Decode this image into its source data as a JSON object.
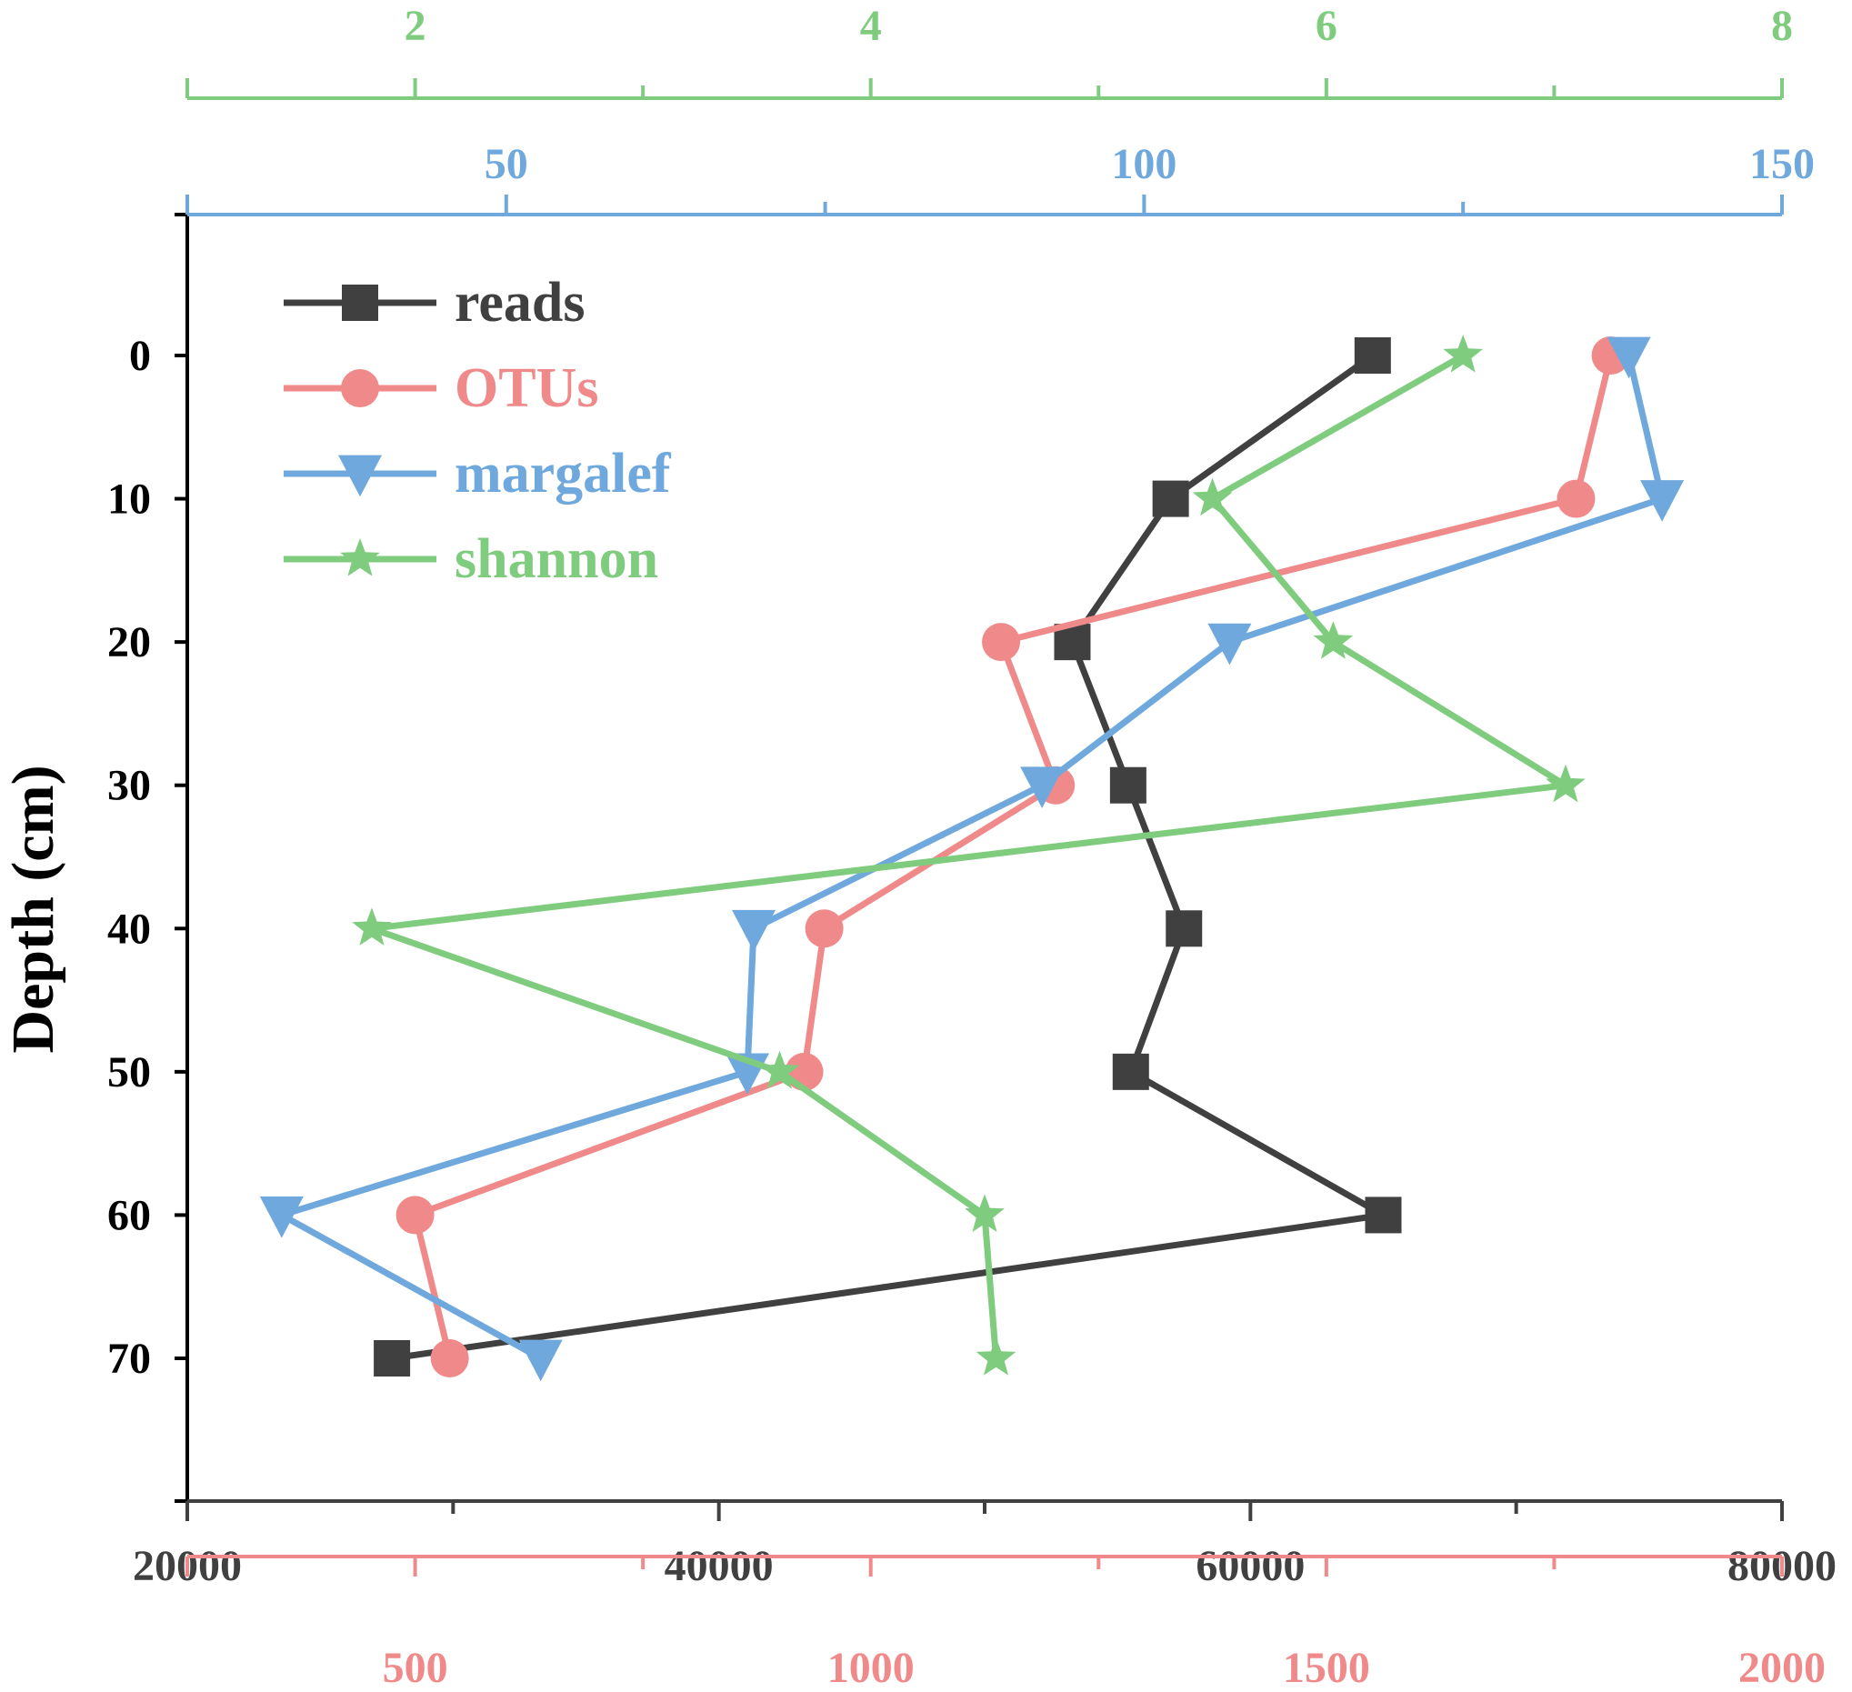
{
  "chart_data": {
    "type": "line",
    "ylabel": "Depth (cm)",
    "y_axis": {
      "range": [
        -10,
        80
      ],
      "inverted": true,
      "ticks": [
        0,
        10,
        20,
        30,
        40,
        50,
        60,
        70
      ],
      "tick_labels": [
        "0",
        "10",
        "20",
        "30",
        "40",
        "50",
        "60",
        "70"
      ]
    },
    "x_axes": [
      {
        "id": "reads",
        "side": "bottom",
        "color": "#404040",
        "range": [
          20000,
          80000
        ],
        "ticks": [
          20000,
          40000,
          60000,
          80000
        ],
        "tick_labels": [
          "20000",
          "40000",
          "60000",
          "80000"
        ],
        "minor_ticks": [
          30000,
          50000,
          70000
        ]
      },
      {
        "id": "otus",
        "side": "bottom-2",
        "color": "#f08a8a",
        "range": [
          250,
          2000
        ],
        "ticks": [
          500,
          1000,
          1500,
          2000
        ],
        "tick_labels": [
          "500",
          "1000",
          "1500",
          "2000"
        ],
        "minor_ticks": [
          750,
          1250,
          1750
        ]
      },
      {
        "id": "margalef",
        "side": "top",
        "color": "#6fa8dc",
        "range": [
          25,
          150
        ],
        "ticks": [
          50,
          100,
          150
        ],
        "tick_labels": [
          "50",
          "100",
          "150"
        ],
        "minor_ticks": [
          75,
          125
        ]
      },
      {
        "id": "shannon",
        "side": "top-2",
        "color": "#7fcc7f",
        "range": [
          1,
          8
        ],
        "ticks": [
          2,
          4,
          6,
          8
        ],
        "tick_labels": [
          "2",
          "4",
          "6",
          "8"
        ],
        "minor_ticks": [
          3,
          5,
          7
        ]
      }
    ],
    "depth": [
      0,
      10,
      20,
      30,
      40,
      50,
      60,
      70
    ],
    "series": [
      {
        "name": "reads",
        "axis": "reads",
        "color": "#404040",
        "marker": "square",
        "values": [
          64600,
          57000,
          53300,
          55400,
          57500,
          55500,
          65000,
          27700
        ]
      },
      {
        "name": "OTUs",
        "axis": "otus",
        "color": "#f08a8a",
        "marker": "circle",
        "values": [
          1812,
          1774,
          1143,
          1203,
          949,
          927,
          500,
          538
        ]
      },
      {
        "name": "margalef",
        "axis": "margalef",
        "color": "#6fa8dc",
        "marker": "triangle-down",
        "values": [
          138,
          140.6,
          106.7,
          92,
          69.4,
          68.9,
          32.4,
          52.7
        ]
      },
      {
        "name": "shannon",
        "axis": "shannon",
        "color": "#7fcc7f",
        "marker": "star",
        "values": [
          6.6,
          5.5,
          6.03,
          7.05,
          1.81,
          3.6,
          4.5,
          4.55
        ]
      }
    ],
    "legend": {
      "position": "top-left"
    },
    "grid": false
  }
}
